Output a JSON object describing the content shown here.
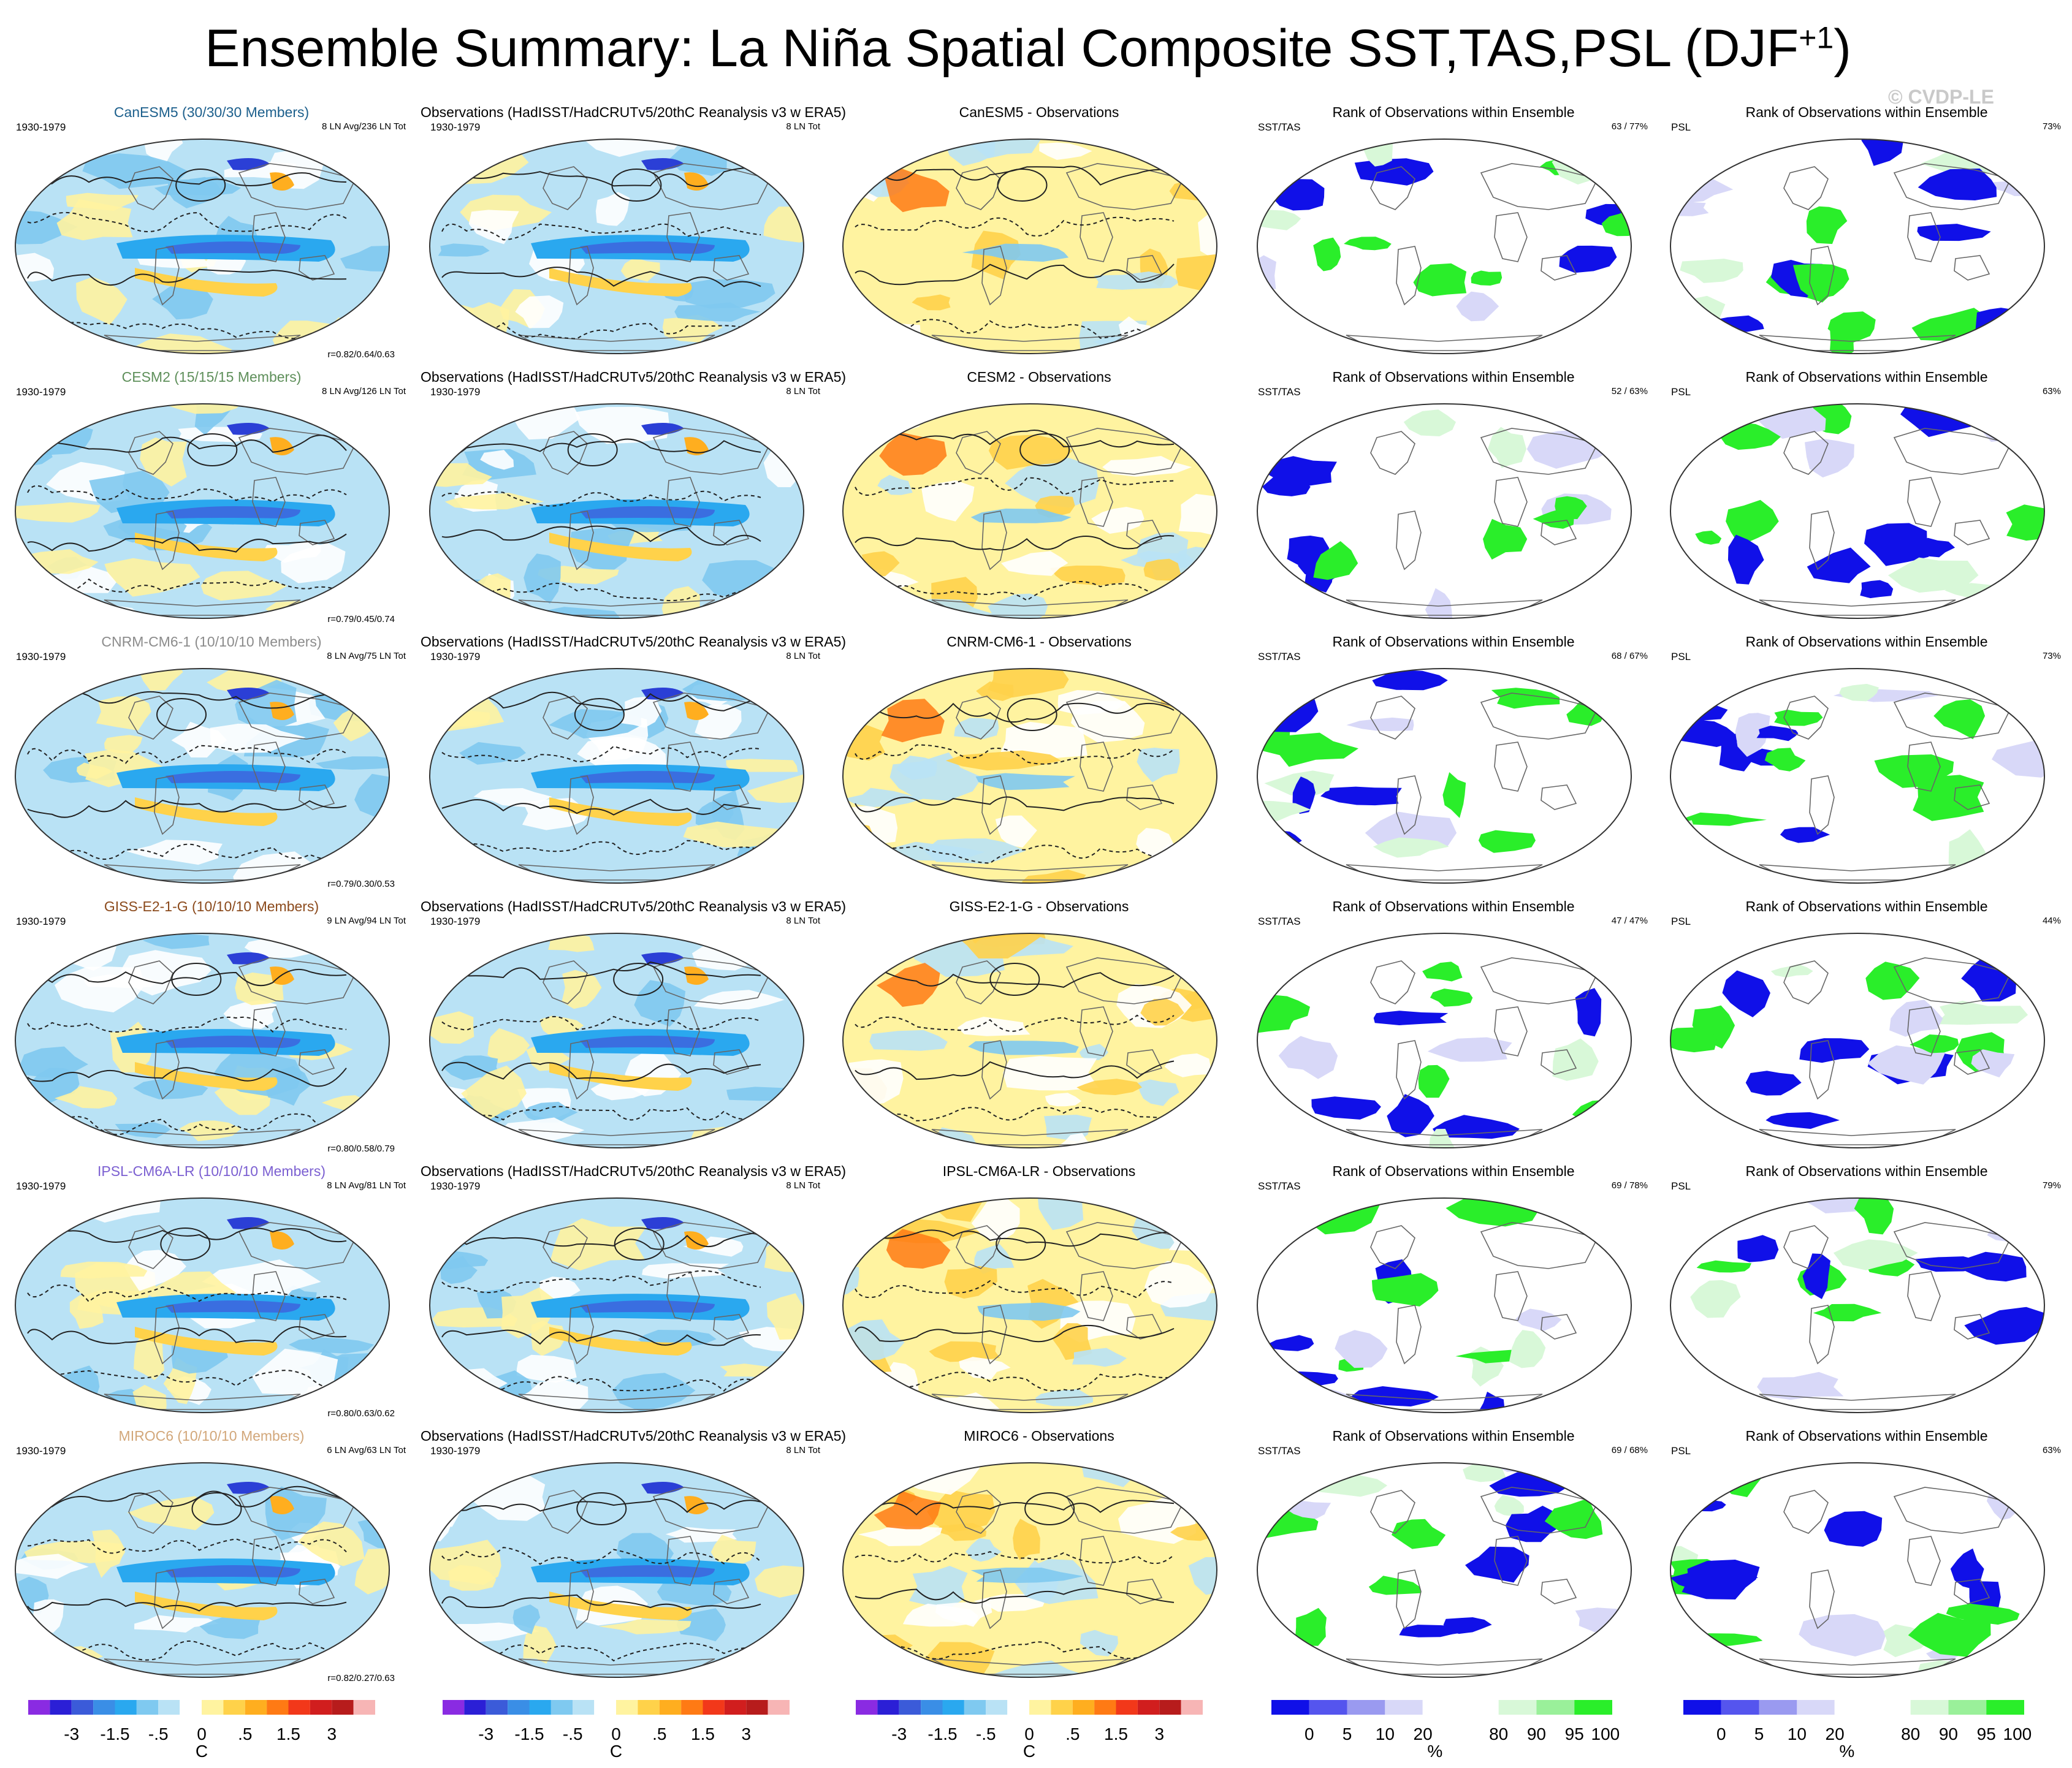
{
  "title_main": "Ensemble Summary: La Niña Spatial Composite SST,TAS,PSL (DJF",
  "title_sup": "+1",
  "title_end": ")",
  "credit": "© CVDP-LE",
  "rows": [
    {
      "model_title": "CanESM5 (30/30/30 Members)",
      "model_color": "#1c5f8c",
      "period": "1930-1979",
      "ln_info": "8 LN Avg/236 LN Tot",
      "corr": "r=0.82/0.64/0.63",
      "obs_title": "Observations (HadISST/HadCRUTv5/20thC Reanalysis v3 w ERA5)",
      "obs_period": "1930-1979",
      "obs_info": "8 LN Tot",
      "diff_title": "CanESM5 - Observations",
      "rank_title": "Rank of Observations within Ensemble",
      "sst_label": "SST/TAS",
      "sst_pct": "63 /  77%",
      "psl_label": "PSL",
      "psl_pct": "73%"
    },
    {
      "model_title": "CESM2 (15/15/15 Members)",
      "model_color": "#5e8f5a",
      "period": "1930-1979",
      "ln_info": "8 LN Avg/126 LN Tot",
      "corr": "r=0.79/0.45/0.74",
      "obs_title": "Observations (HadISST/HadCRUTv5/20thC Reanalysis v3 w ERA5)",
      "obs_period": "1930-1979",
      "obs_info": "8 LN Tot",
      "diff_title": "CESM2 - Observations",
      "rank_title": "Rank of Observations within Ensemble",
      "sst_label": "SST/TAS",
      "sst_pct": "52 /  63%",
      "psl_label": "PSL",
      "psl_pct": "63%"
    },
    {
      "model_title": "CNRM-CM6-1 (10/10/10 Members)",
      "model_color": "#8c8c8c",
      "period": "1930-1979",
      "ln_info": "8 LN Avg/75 LN Tot",
      "corr": "r=0.79/0.30/0.53",
      "obs_title": "Observations (HadISST/HadCRUTv5/20thC Reanalysis v3 w ERA5)",
      "obs_period": "1930-1979",
      "obs_info": "8 LN Tot",
      "diff_title": "CNRM-CM6-1 - Observations",
      "rank_title": "Rank of Observations within Ensemble",
      "sst_label": "SST/TAS",
      "sst_pct": "68 /  67%",
      "psl_label": "PSL",
      "psl_pct": "73%"
    },
    {
      "model_title": "GISS-E2-1-G (10/10/10 Members)",
      "model_color": "#8b4a1c",
      "period": "1930-1979",
      "ln_info": "9 LN Avg/94 LN Tot",
      "corr": "r=0.80/0.58/0.79",
      "obs_title": "Observations (HadISST/HadCRUTv5/20thC Reanalysis v3 w ERA5)",
      "obs_period": "1930-1979",
      "obs_info": "8 LN Tot",
      "diff_title": "GISS-E2-1-G - Observations",
      "rank_title": "Rank of Observations within Ensemble",
      "sst_label": "SST/TAS",
      "sst_pct": "47 /  47%",
      "psl_label": "PSL",
      "psl_pct": "44%"
    },
    {
      "model_title": "IPSL-CM6A-LR (10/10/10 Members)",
      "model_color": "#7b5fd1",
      "period": "1930-1979",
      "ln_info": "8 LN Avg/81 LN Tot",
      "corr": "r=0.80/0.63/0.62",
      "obs_title": "Observations (HadISST/HadCRUTv5/20thC Reanalysis v3 w ERA5)",
      "obs_period": "1930-1979",
      "obs_info": "8 LN Tot",
      "diff_title": "IPSL-CM6A-LR - Observations",
      "rank_title": "Rank of Observations within Ensemble",
      "sst_label": "SST/TAS",
      "sst_pct": "69 /  78%",
      "psl_label": "PSL",
      "psl_pct": "79%"
    },
    {
      "model_title": "MIROC6 (10/10/10 Members)",
      "model_color": "#d2a77a",
      "period": "1930-1979",
      "ln_info": "6 LN Avg/63 LN Tot",
      "corr": "r=0.82/0.27/0.63",
      "obs_title": "Observations (HadISST/HadCRUTv5/20thC Reanalysis v3 w ERA5)",
      "obs_period": "1930-1979",
      "obs_info": "8 LN Tot",
      "diff_title": "MIROC6 - Observations",
      "rank_title": "Rank of Observations within Ensemble",
      "sst_label": "SST/TAS",
      "sst_pct": "69 /  68%",
      "psl_label": "PSL",
      "psl_pct": "63%"
    }
  ],
  "temp_colorbar": {
    "colors": [
      "#8a2be2",
      "#2b1fd6",
      "#3b5bd9",
      "#3a8ee6",
      "#2aa8ef",
      "#7fc9f0",
      "#b9e2f5",
      "#ffffff",
      "#fff3a0",
      "#ffd24a",
      "#ffae1f",
      "#ff7a14",
      "#f2381a",
      "#d11e1e",
      "#b71c1c",
      "#f7b5b5"
    ],
    "ticks": [
      "-3",
      "-1.5",
      "-.5",
      "0",
      ".5",
      "1.5",
      "3"
    ],
    "unit": "C"
  },
  "rank_colorbar": {
    "colors": [
      "#1010e8",
      "#5555ee",
      "#9a9af0",
      "#d8d8f8",
      "#ffffff",
      "#ffffff",
      "#d8f8d8",
      "#9af09a",
      "#2aee2a"
    ],
    "ticks": [
      "0",
      "5",
      "10",
      "20",
      "80",
      "90",
      "95",
      "100"
    ],
    "unit": "%"
  }
}
